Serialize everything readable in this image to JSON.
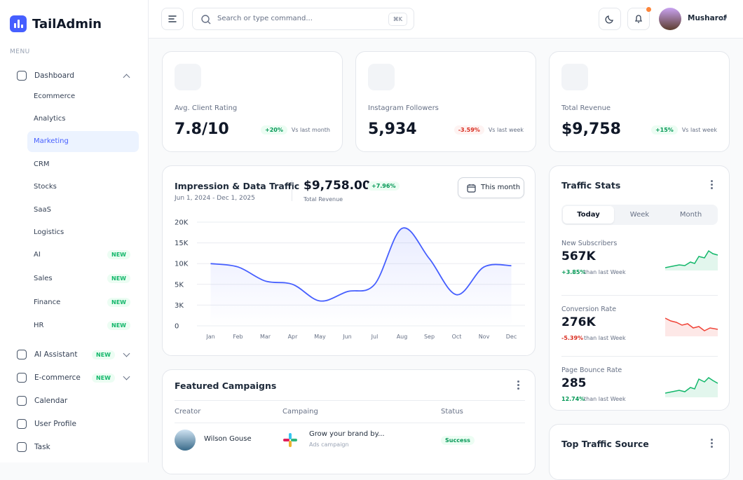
{
  "sidebar": {
    "brand": "TailAdmin",
    "menu_label": "MENU",
    "items": [
      {
        "label": "Dashboard",
        "children": [
          {
            "label": "Ecommerce"
          },
          {
            "label": "Analytics"
          },
          {
            "label": "Marketing"
          },
          {
            "label": "CRM"
          },
          {
            "label": "Stocks"
          },
          {
            "label": "SaaS"
          },
          {
            "label": "Logistics"
          },
          {
            "label": "AI",
            "badge": "NEW"
          },
          {
            "label": "Sales",
            "badge": "NEW"
          },
          {
            "label": "Finance",
            "badge": "NEW"
          },
          {
            "label": "HR",
            "badge": "NEW"
          }
        ]
      },
      {
        "label": "AI Assistant",
        "badge": "NEW"
      },
      {
        "label": "E-commerce",
        "badge": "NEW"
      },
      {
        "label": "Calendar"
      },
      {
        "label": "User Profile"
      },
      {
        "label": "Task"
      }
    ]
  },
  "header": {
    "search_placeholder": "Search or type command...",
    "shortcut": "⌘K",
    "user_name": "Musharof"
  },
  "stats": [
    {
      "label": "Avg. Client Rating",
      "value": "7.8/10",
      "change": "+20%",
      "period": "Vs last month"
    },
    {
      "label": "Instagram Followers",
      "value": "5,934",
      "change": "-3.59%",
      "period": "Vs last week"
    },
    {
      "label": "Total Revenue",
      "value": "$9,758",
      "change": "+15%",
      "period": "Vs last week"
    }
  ],
  "traffic_chart": {
    "title": "Impression & Data Traffic",
    "date_range": "Jun 1, 2024 - Dec 1, 2025",
    "total": "$9,758.00",
    "change": "+7.96%",
    "total_label": "Total Revenue",
    "button": "This month",
    "chart_data": {
      "type": "line",
      "categories": [
        "Jan",
        "Feb",
        "Mar",
        "Apr",
        "May",
        "Jun",
        "Jul",
        "Aug",
        "Sep",
        "Oct",
        "Nov",
        "Dec"
      ],
      "values": [
        10000,
        9200,
        5800,
        5000,
        3400,
        4300,
        5000,
        18500,
        11200,
        4000,
        9200,
        9500
      ],
      "color": "#465fff",
      "ylim": [
        0,
        20000
      ],
      "yticks": [
        0,
        {
          "value": 3000,
          "label": "3K"
        },
        {
          "value": 5000,
          "label": "5K"
        },
        {
          "value": 10000,
          "label": "10K"
        },
        {
          "value": 15000,
          "label": "15K"
        },
        {
          "value": 20000,
          "label": "20K"
        }
      ],
      "grid": true
    }
  },
  "traffic_stats": {
    "title": "Traffic Stats",
    "tabs": [
      "Today",
      "Week",
      "Month"
    ],
    "items": [
      {
        "label": "New Subscribers",
        "value": "567K",
        "change": "+3.85%",
        "period": "than last Week"
      },
      {
        "label": "Conversion Rate",
        "value": "276K",
        "change": "-5.39%",
        "period": "than last Week"
      },
      {
        "label": "Page Bounce Rate",
        "value": "285",
        "change": "12.74%",
        "period": "than last Week"
      }
    ]
  },
  "campaigns": {
    "title": "Featured Campaigns",
    "columns": [
      "Creator",
      "Campaing",
      "Status"
    ],
    "rows": [
      {
        "creator": "Wilson Gouse",
        "campaign": "Grow your brand by...",
        "campaign_type": "Ads campaign",
        "status": "Success"
      }
    ]
  },
  "top_traffic_source": {
    "title": "Top Traffic Source"
  }
}
